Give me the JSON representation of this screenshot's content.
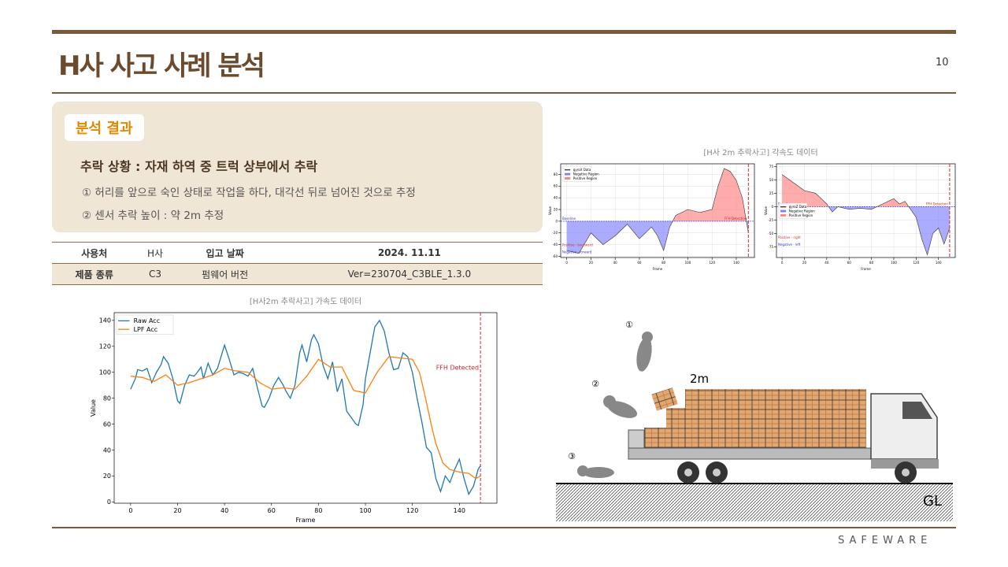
{
  "slide": {
    "title": "H사 사고 사례 분석",
    "page": "10",
    "section_label": "분석 결과",
    "situation": "추락 상황 : 자재 하역 중 트럭 상부에서 추락",
    "points": [
      "① 허리를 앞으로 숙인 상태로 작업을 하다, 대각선 뒤로 넘어진 것으로 추정",
      "② 센서 추락 높이 : 약 2m 추정"
    ],
    "table": {
      "rows": [
        [
          "사용처",
          "H사",
          "입고 날짜",
          "2024. 11.11"
        ],
        [
          "제품 종류",
          "C3",
          "펌웨어 버전",
          "Ver=230704_C3BLE_1.3.0"
        ]
      ]
    },
    "gyro_title": "[H사 2m 추락사고] 각속도 데이터",
    "illustration": {
      "labels": [
        "①",
        "②",
        "③"
      ],
      "height": "2m",
      "ground": "GL"
    },
    "brand": "SAFEWARE"
  },
  "chart_data": [
    {
      "type": "line",
      "title": "[H사2m 추락사고] 가속도 데이터",
      "xlabel": "Frame",
      "ylabel": "Value",
      "xlim": [
        -7,
        156
      ],
      "ylim": [
        -1,
        146
      ],
      "xticks": [
        0,
        20,
        40,
        60,
        80,
        100,
        120,
        140
      ],
      "yticks": [
        0,
        20,
        40,
        60,
        80,
        100,
        120,
        140
      ],
      "grid": false,
      "legend": "upper left",
      "series": [
        {
          "name": "Raw Acc",
          "color": "#1f77b4",
          "x": [
            0,
            2,
            3,
            5,
            7,
            9,
            11,
            13,
            14,
            16,
            18,
            20,
            21,
            23,
            25,
            27,
            28,
            30,
            31,
            33,
            35,
            37,
            39,
            40,
            42,
            44,
            46,
            48,
            50,
            52,
            54,
            56,
            57,
            59,
            61,
            63,
            65,
            66,
            68,
            70,
            72,
            73,
            75,
            77,
            78,
            80,
            82,
            84,
            86,
            88,
            90,
            92,
            94,
            96,
            97,
            99,
            100,
            102,
            104,
            106,
            108,
            110,
            112,
            114,
            116,
            118,
            120,
            122,
            124,
            126,
            128,
            130,
            132,
            134,
            136,
            138,
            140,
            142,
            144,
            146,
            148,
            149
          ],
          "values": [
            87,
            95,
            102,
            101,
            103,
            92,
            100,
            106,
            112,
            107,
            95,
            78,
            76,
            90,
            98,
            97,
            99,
            104,
            95,
            107,
            98,
            103,
            115,
            121,
            110,
            98,
            100,
            99,
            97,
            103,
            88,
            74,
            73,
            80,
            90,
            96,
            90,
            86,
            80,
            90,
            115,
            121,
            108,
            125,
            129,
            122,
            105,
            95,
            108,
            85,
            95,
            70,
            65,
            60,
            59,
            75,
            95,
            115,
            135,
            140,
            132,
            115,
            102,
            103,
            115,
            112,
            100,
            80,
            62,
            42,
            38,
            18,
            8,
            20,
            15,
            25,
            33,
            18,
            6,
            12,
            25,
            28
          ]
        },
        {
          "name": "LPF Acc",
          "color": "#ff7f0e",
          "x": [
            0,
            5,
            10,
            15,
            20,
            25,
            30,
            35,
            40,
            45,
            50,
            55,
            60,
            65,
            70,
            75,
            80,
            85,
            90,
            95,
            100,
            105,
            110,
            115,
            120,
            123,
            125,
            128,
            130,
            133,
            136,
            140,
            144,
            147,
            149
          ],
          "values": [
            97,
            96,
            93,
            98,
            90,
            92,
            95,
            98,
            103,
            101,
            100,
            92,
            87,
            88,
            87,
            97,
            110,
            104,
            104,
            86,
            84,
            100,
            112,
            111,
            110,
            100,
            85,
            60,
            45,
            30,
            25,
            23,
            22,
            18,
            20
          ]
        }
      ],
      "vline": {
        "x": 149,
        "label": "FFH Detected",
        "color": "#d62728"
      }
    },
    {
      "type": "area",
      "xlabel": "Frame",
      "ylabel": "Value",
      "xlim": [
        -5,
        155
      ],
      "ylim": [
        -62,
        98
      ],
      "xticks": [
        0,
        20,
        40,
        60,
        80,
        100,
        120,
        140
      ],
      "yticks": [
        -60,
        -40,
        -20,
        0,
        20,
        40,
        60,
        80
      ],
      "grid": true,
      "legend": "upper left",
      "series": [
        {
          "name": "gyroX Data",
          "color": "#333333",
          "x": [
            0,
            10,
            20,
            30,
            40,
            50,
            60,
            70,
            75,
            80,
            85,
            90,
            100,
            110,
            120,
            125,
            130,
            135,
            140,
            145,
            150
          ],
          "values": [
            -50,
            -55,
            -20,
            -40,
            -25,
            -5,
            -30,
            -10,
            -25,
            -50,
            -10,
            10,
            20,
            15,
            20,
            60,
            90,
            85,
            70,
            40,
            -20
          ]
        }
      ],
      "regions": [
        {
          "name": "Negative Region",
          "color": "#8080ff"
        },
        {
          "name": "Positive Region",
          "color": "#ff8080"
        }
      ],
      "baseline": {
        "value": 0,
        "label": "Baseline"
      },
      "notes": [
        "Positive - backward",
        "Negative - forward"
      ],
      "vline": {
        "x": 150,
        "label": "FFH Detection",
        "color": "#d62728"
      }
    },
    {
      "type": "area",
      "xlabel": "Frame",
      "ylabel": "Value",
      "xlim": [
        -5,
        155
      ],
      "ylim": [
        -95,
        80
      ],
      "xticks": [
        0,
        20,
        40,
        60,
        80,
        100,
        120,
        140
      ],
      "yticks": [
        -75,
        -50,
        -25,
        0,
        25,
        50,
        75
      ],
      "grid": true,
      "legend": "center left",
      "series": [
        {
          "name": "gyroZ Data",
          "color": "#333333",
          "x": [
            0,
            10,
            20,
            30,
            40,
            45,
            50,
            60,
            70,
            80,
            90,
            100,
            105,
            110,
            115,
            120,
            125,
            130,
            135,
            140,
            145,
            150
          ],
          "values": [
            60,
            45,
            30,
            25,
            5,
            -10,
            0,
            -5,
            -3,
            -5,
            5,
            15,
            5,
            10,
            -5,
            -20,
            -60,
            -90,
            -50,
            -40,
            -70,
            -40
          ]
        }
      ],
      "regions": [
        {
          "name": "Negative Region",
          "color": "#8080ff"
        },
        {
          "name": "Positive Region",
          "color": "#ff8080"
        }
      ],
      "baseline": {
        "value": 0,
        "label": "Baseline"
      },
      "notes": [
        "Positive - right",
        "Negative - left"
      ],
      "vline": {
        "x": 150,
        "label": "FFH Detection",
        "color": "#d62728"
      }
    }
  ]
}
